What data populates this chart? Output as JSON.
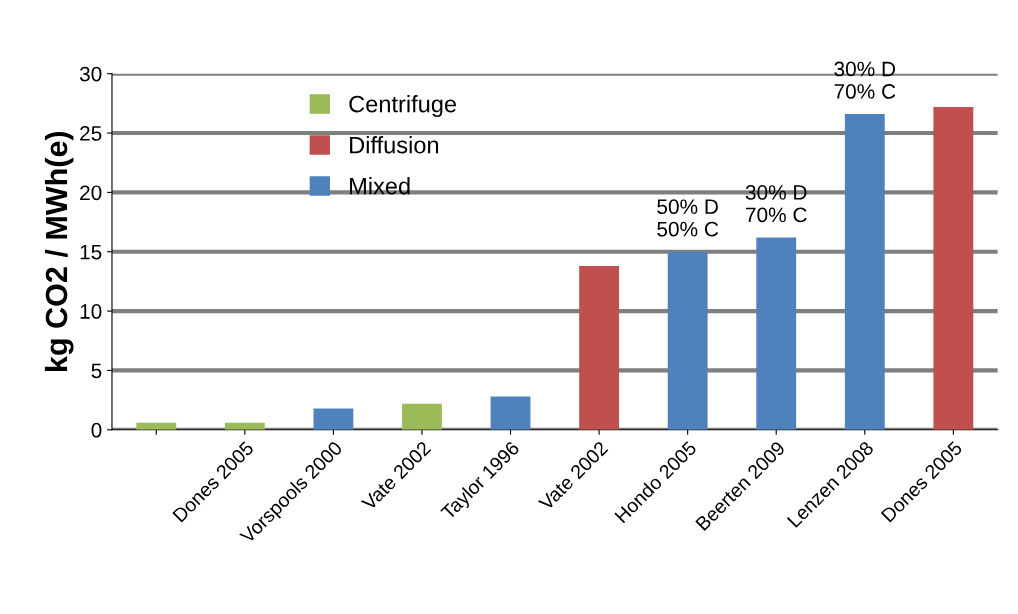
{
  "chart_data": {
    "type": "bar",
    "ylabel": "kg CO2 / MWh(e)",
    "categories": [
      null,
      "Dones 2005",
      "Vorspools 2000",
      "Vate 2002",
      "Taylor 1996",
      "Vate 2002",
      "Hondo 2005",
      "Beerten 2009",
      "Lenzen 2008",
      "Dones 2005"
    ],
    "stacked": true,
    "series": [
      {
        "name": "Centrifuge",
        "color": "#9bbb59",
        "values": [
          0.6,
          0.6,
          null,
          2.2,
          null,
          null,
          null,
          null,
          null,
          null
        ]
      },
      {
        "name": "Diffusion",
        "color": "#c0504d",
        "values": [
          null,
          null,
          null,
          null,
          null,
          13.8,
          null,
          null,
          null,
          27.2
        ]
      },
      {
        "name": "Mixed",
        "color": "#4f81bd",
        "values": [
          null,
          null,
          1.8,
          null,
          2.8,
          null,
          15.0,
          16.2,
          26.6,
          null
        ]
      }
    ],
    "annotations": [
      {
        "text": "50% D\n50% C",
        "x": "Hondo 2005",
        "y": 15.0
      },
      {
        "text": "30% D\n70% C",
        "x": "Beerten 2009",
        "y": 16.2
      },
      {
        "text": "30% D\n70% C",
        "x": "Lenzen 2008",
        "y": 26.6
      }
    ],
    "ylim": [
      0,
      30
    ],
    "yticks": [
      0,
      5,
      10,
      15,
      20,
      25,
      30
    ],
    "grid": "y",
    "legend": "top left"
  }
}
